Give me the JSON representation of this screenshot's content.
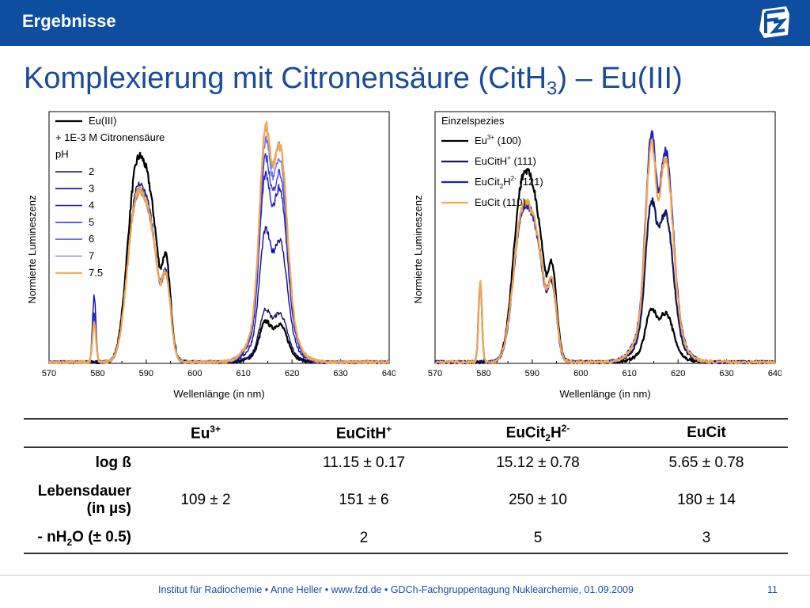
{
  "header": {
    "section": "Ergebnisse",
    "logo_text": "FZD"
  },
  "title": {
    "main": "Komplexierung mit Citronensäure (CitH",
    "sub": "3",
    "tail": ") – Eu(III)"
  },
  "colors": {
    "black": "#000000",
    "navy": "#14145c",
    "blue1": "#1c1ccc",
    "blue2": "#3a3adc",
    "blue3": "#6a6ae6",
    "gray": "#9a8da8",
    "orange": "#f4a84c"
  },
  "chart_data": [
    {
      "type": "line",
      "xlabel": "Wellenlänge (in nm)",
      "ylabel": "Normierte Lumineszenz",
      "xlim": [
        570,
        640
      ],
      "xticks": [
        "570",
        "580",
        "590",
        "600",
        "610",
        "620",
        "630",
        "640"
      ],
      "legend": {
        "placement": "top-left",
        "header": [
          "+ 1E-3 M Citronensäure",
          "pH"
        ],
        "entries": [
          {
            "label": "Eu(III)",
            "color": "#000000"
          },
          {
            "label": "2",
            "color": "#14145c"
          },
          {
            "label": "3",
            "color": "#0a0a9c"
          },
          {
            "label": "4",
            "color": "#1c1ccc"
          },
          {
            "label": "5",
            "color": "#3a3adc"
          },
          {
            "label": "6",
            "color": "#6a6ae6"
          },
          {
            "label": "7",
            "color": "#9a8da8"
          },
          {
            "label": "7.5",
            "color": "#f4a84c"
          }
        ]
      },
      "series": [
        {
          "name": "Eu(III)",
          "peak_heights": [
            0.0,
            0.72,
            0.17
          ]
        },
        {
          "name": "2",
          "peak_heights": [
            0.0,
            0.62,
            0.22
          ]
        },
        {
          "name": "3",
          "peak_heights": [
            0.27,
            0.6,
            0.55
          ]
        },
        {
          "name": "4",
          "peak_heights": [
            0.2,
            0.61,
            0.78
          ]
        },
        {
          "name": "5",
          "peak_heights": [
            0.18,
            0.6,
            0.85
          ]
        },
        {
          "name": "6",
          "peak_heights": [
            0.17,
            0.6,
            0.92
          ]
        },
        {
          "name": "7",
          "peak_heights": [
            0.16,
            0.6,
            0.97
          ]
        },
        {
          "name": "7.5",
          "peak_heights": [
            0.16,
            0.6,
            0.98
          ]
        }
      ]
    },
    {
      "type": "line",
      "xlabel": "Wellenlänge (in nm)",
      "ylabel": "Normierte Lumineszenz",
      "xlim": [
        570,
        640
      ],
      "xticks": [
        "570",
        "580",
        "590",
        "600",
        "610",
        "620",
        "630",
        "640"
      ],
      "legend": {
        "placement": "top-left",
        "header": "Einzelspezies",
        "entries": [
          {
            "base": "Eu",
            "sup": "3+",
            "sub": "",
            "tail": " (100)",
            "color": "#000000"
          },
          {
            "base": "EuCitH",
            "sup": "+",
            "sub": "",
            "tail": " (111)",
            "color": "#14145c"
          },
          {
            "base": "EuCit",
            "sub": "2",
            "mid": "H",
            "sup": "2-",
            "tail": " (121)",
            "color": "#1c1ccc"
          },
          {
            "base": "EuCit (110)",
            "sup": "",
            "sub": "",
            "tail": "",
            "color": "#f4a84c"
          }
        ]
      },
      "series": [
        {
          "name": "Eu3+ (100)",
          "peak_heights": [
            0.0,
            0.67,
            0.22
          ]
        },
        {
          "name": "EuCitH+ (111)",
          "peak_heights": [
            0.0,
            0.55,
            0.67
          ]
        },
        {
          "name": "EuCit2H2- (121)",
          "peak_heights": [
            0.33,
            0.55,
            0.95
          ]
        },
        {
          "name": "EuCit (110)",
          "peak_heights": [
            0.33,
            0.56,
            0.91
          ]
        }
      ]
    }
  ],
  "table": {
    "headers": [
      {
        "base": "",
        "sup": "",
        "sub": "",
        "tail": ""
      },
      {
        "base": "Eu",
        "sup": "3+",
        "sub": "",
        "tail": ""
      },
      {
        "base": "EuCitH",
        "sup": "+",
        "sub": "",
        "tail": ""
      },
      {
        "base": "EuCit",
        "sub": "2",
        "mid": "H",
        "sup": "2-",
        "tail": ""
      },
      {
        "base": "EuCit",
        "sup": "",
        "sub": "",
        "tail": ""
      }
    ],
    "rows": [
      {
        "label": "log ß",
        "cells": [
          "",
          "11.15 ± 0.17",
          "15.12 ± 0.78",
          "5.65 ± 0.78"
        ]
      },
      {
        "label_line1": "Lebensdauer",
        "label_line2": "(in µs)",
        "cells": [
          "109 ± 2",
          "151 ± 6",
          "250 ± 10",
          "180 ± 14"
        ]
      },
      {
        "label_pre": "- nH",
        "label_sub": "2",
        "label_post": "O (± 0.5)",
        "cells": [
          "",
          "2",
          "5",
          "3"
        ]
      }
    ]
  },
  "footer": {
    "text": "Institut für Radiochemie • Anne Heller • www.fzd.de • GDCh-Fachgruppentagung Nuklearchemie, 01.09.2009",
    "page": "11"
  }
}
